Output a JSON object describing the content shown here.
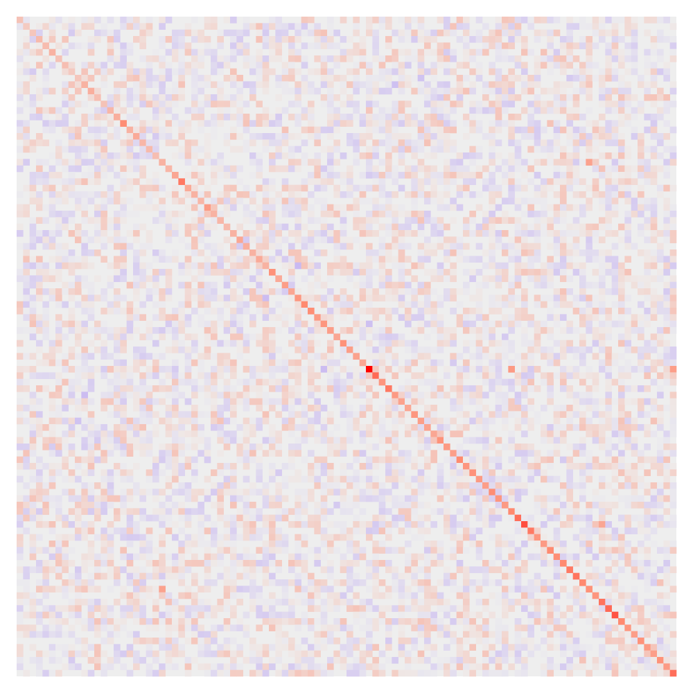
{
  "chart_data": {
    "type": "heatmap",
    "rows": 102,
    "cols": 102,
    "title": "",
    "xlabel": "",
    "ylabel": "",
    "colormap": {
      "negative": "#c6b4f2",
      "neutral": "#eeeeee",
      "positive": "#ff8a70",
      "max": "#ff0000"
    },
    "value_range": [
      -0.35,
      1.0
    ],
    "grid": false,
    "legend": "none",
    "diagonal_values": [
      0.22,
      0.18,
      0.2,
      0.26,
      0.25,
      0.3,
      0.22,
      0.24,
      0.18,
      0.2,
      0.3,
      0.32,
      0.24,
      0.22,
      0.28,
      0.32,
      0.48,
      0.3,
      0.34,
      0.28,
      0.26,
      0.24,
      0.3,
      0.28,
      0.36,
      0.56,
      0.34,
      0.3,
      0.28,
      0.42,
      0.3,
      0.28,
      0.26,
      0.3,
      0.36,
      0.32,
      0.3,
      0.34,
      0.3,
      0.46,
      0.34,
      0.4,
      0.36,
      0.44,
      0.5,
      0.48,
      0.42,
      0.44,
      0.4,
      0.36,
      0.46,
      0.4,
      0.38,
      0.36,
      1.0,
      0.62,
      0.44,
      0.56,
      0.42,
      0.38,
      0.36,
      0.44,
      0.4,
      0.38,
      0.36,
      0.46,
      0.42,
      0.4,
      0.5,
      0.44,
      0.46,
      0.42,
      0.4,
      0.48,
      0.44,
      0.42,
      0.5,
      0.6,
      0.72,
      0.56,
      0.44,
      0.42,
      0.5,
      0.48,
      0.5,
      0.56,
      0.58,
      0.5,
      0.46,
      0.44,
      0.58,
      0.62,
      0.7,
      0.5,
      0.44,
      0.4,
      0.46,
      0.42,
      0.4,
      0.46,
      0.42,
      0.6
    ],
    "hotspots": [
      {
        "row": 54,
        "col": 54,
        "value": 1.0
      },
      {
        "row": 55,
        "col": 55,
        "value": 0.62
      },
      {
        "row": 25,
        "col": 25,
        "value": 0.56
      },
      {
        "row": 78,
        "col": 78,
        "value": 0.72
      },
      {
        "row": 91,
        "col": 91,
        "value": 0.62
      },
      {
        "row": 92,
        "col": 92,
        "value": 0.7
      },
      {
        "row": 101,
        "col": 101,
        "value": 0.6
      },
      {
        "row": 54,
        "col": 76,
        "value": 0.42
      },
      {
        "row": 54,
        "col": 101,
        "value": 0.4
      },
      {
        "row": 78,
        "col": 90,
        "value": 0.36
      },
      {
        "row": 22,
        "col": 88,
        "value": 0.38
      },
      {
        "row": 88,
        "col": 22,
        "value": 0.38
      },
      {
        "row": 38,
        "col": 43,
        "value": -0.32
      },
      {
        "row": 43,
        "col": 38,
        "value": -0.3
      },
      {
        "row": 58,
        "col": 10,
        "value": -0.3
      },
      {
        "row": 10,
        "col": 58,
        "value": -0.28
      },
      {
        "row": 54,
        "col": 47,
        "value": -0.3
      },
      {
        "row": 47,
        "col": 54,
        "value": -0.28
      },
      {
        "row": 9,
        "col": 62,
        "value": -0.26
      },
      {
        "row": 62,
        "col": 9,
        "value": -0.26
      }
    ],
    "offdiag_spread": 0.14,
    "random_seed": 20240517
  }
}
